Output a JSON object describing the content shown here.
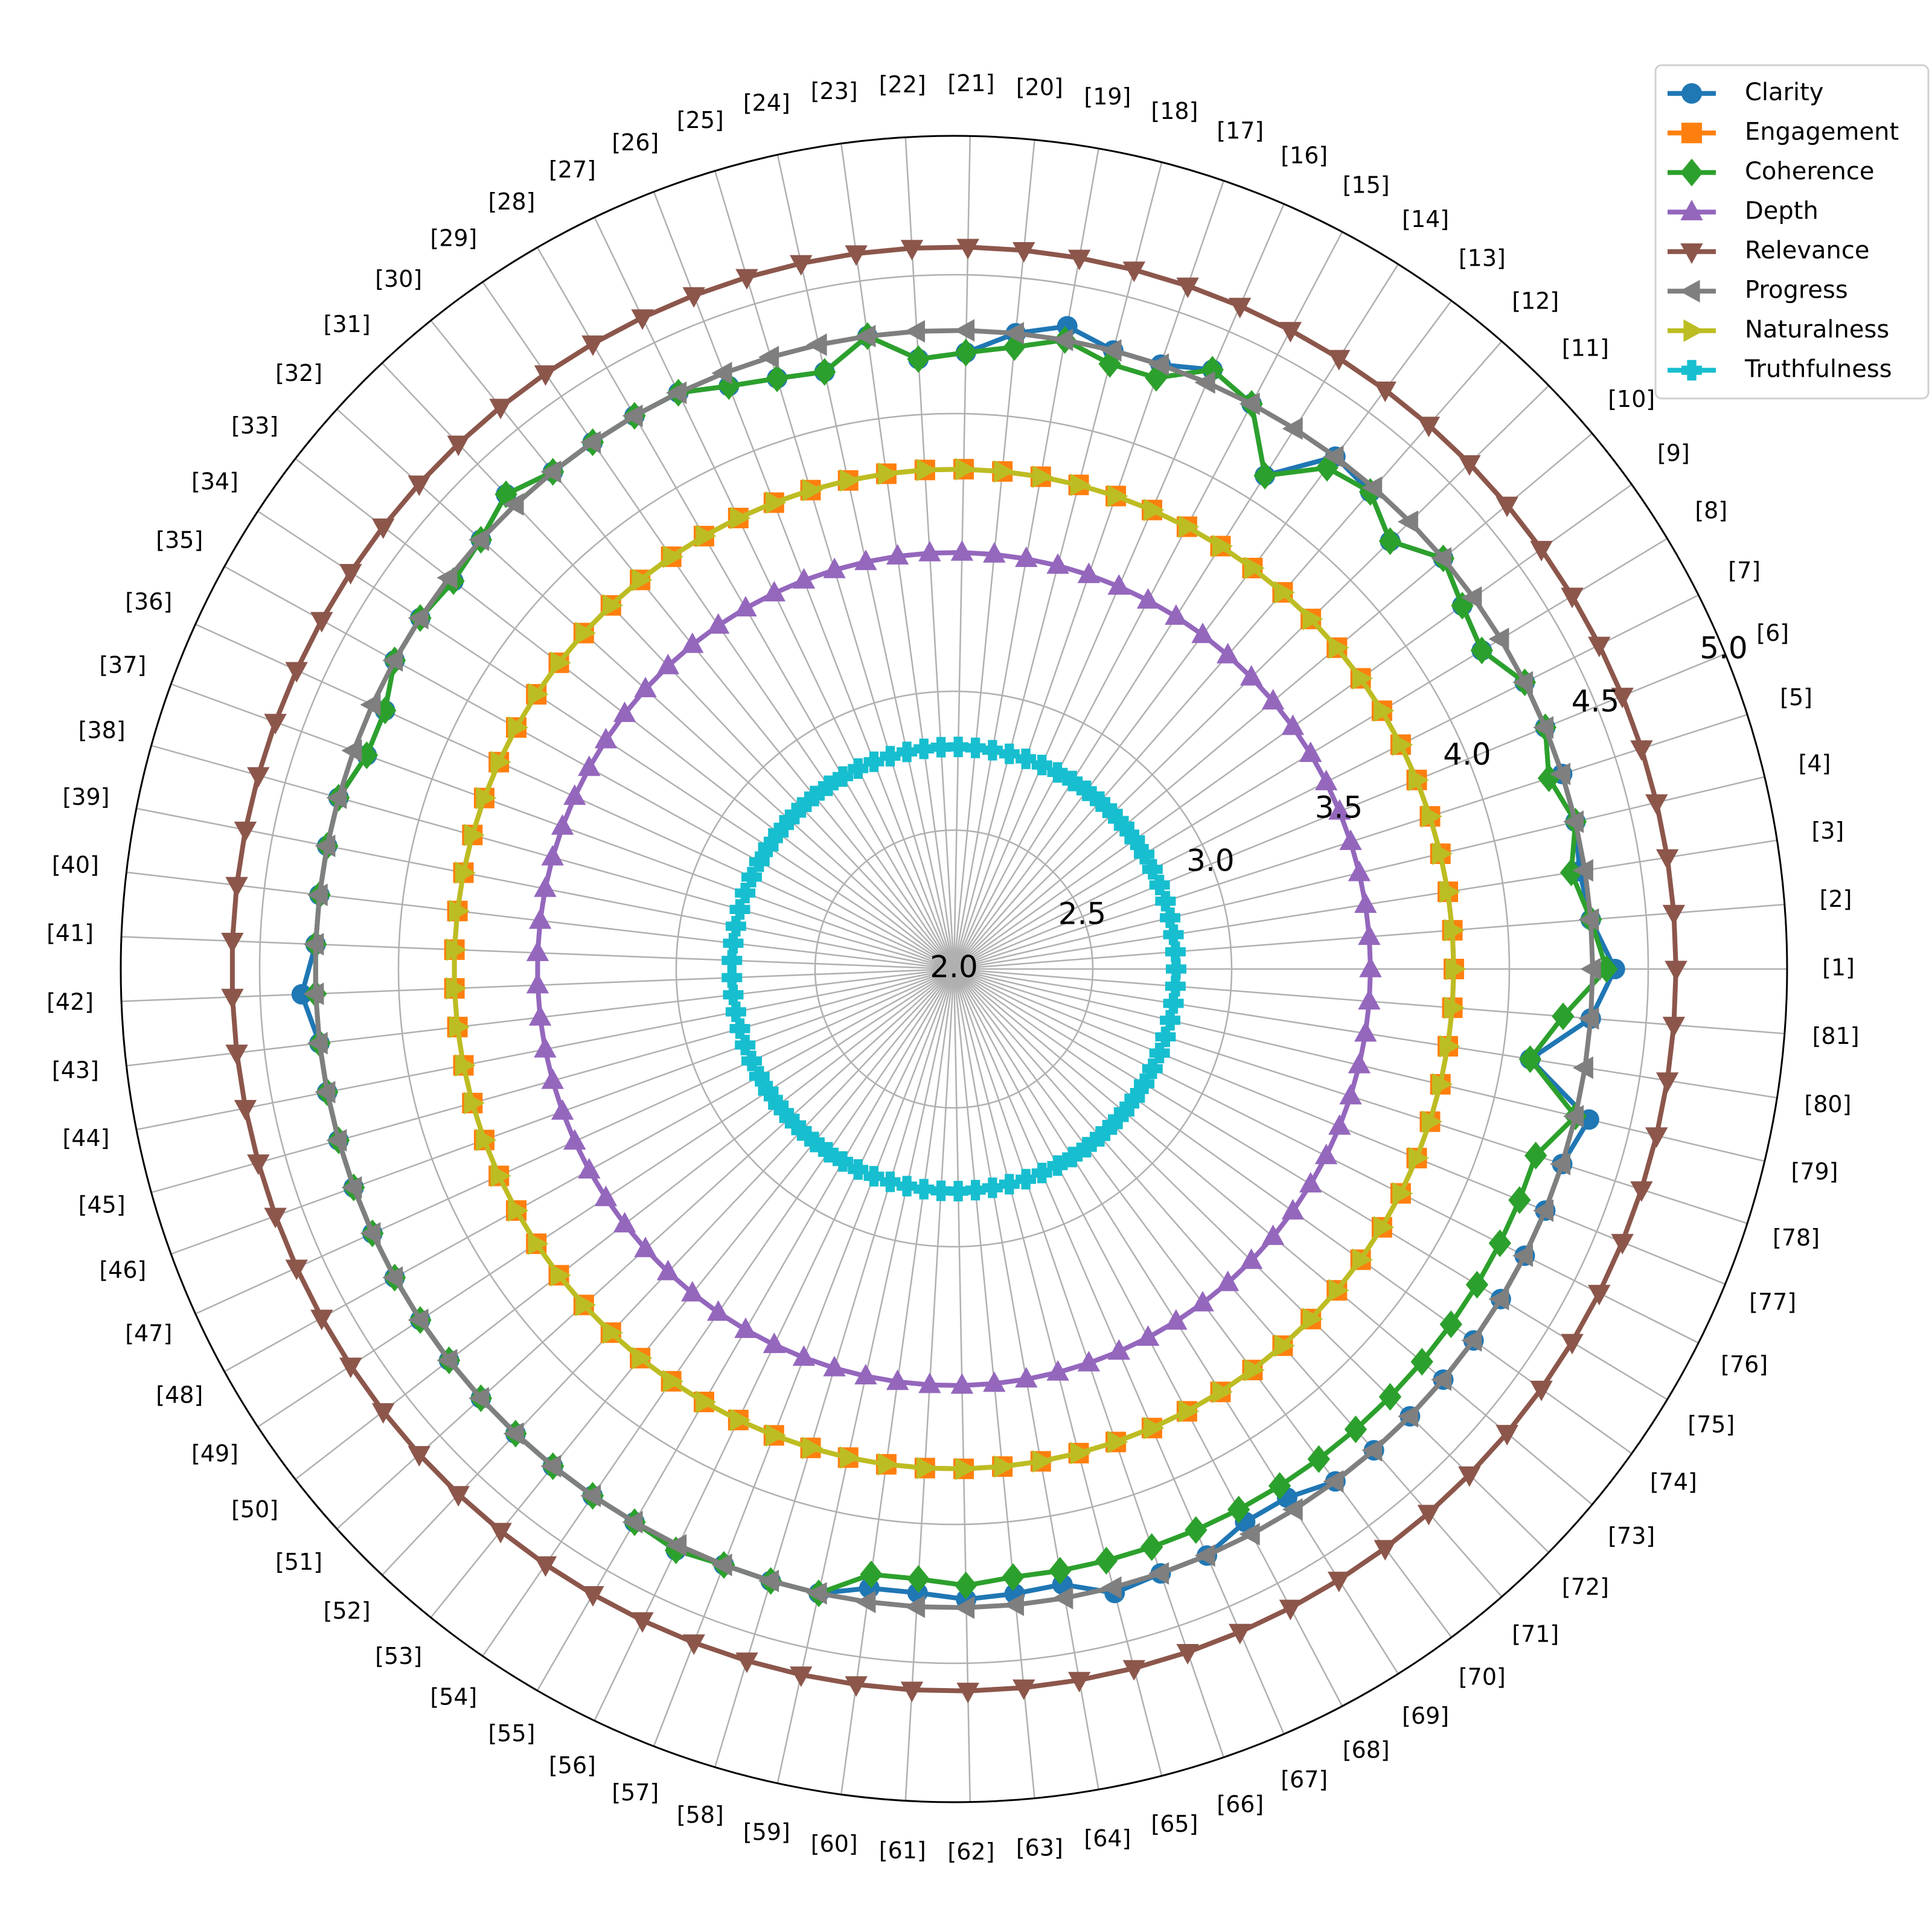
{
  "chart_data": {
    "type": "radar",
    "title": "",
    "categories": [
      "[1]",
      "[2]",
      "[3]",
      "[4]",
      "[5]",
      "[6]",
      "[7]",
      "[8]",
      "[9]",
      "[10]",
      "[11]",
      "[12]",
      "[13]",
      "[14]",
      "[15]",
      "[16]",
      "[17]",
      "[18]",
      "[19]",
      "[20]",
      "[21]",
      "[22]",
      "[23]",
      "[24]",
      "[25]",
      "[26]",
      "[27]",
      "[28]",
      "[29]",
      "[30]",
      "[31]",
      "[32]",
      "[33]",
      "[34]",
      "[35]",
      "[36]",
      "[37]",
      "[38]",
      "[39]",
      "[40]",
      "[41]",
      "[42]",
      "[43]",
      "[44]",
      "[45]",
      "[46]",
      "[47]",
      "[48]",
      "[49]",
      "[50]",
      "[51]",
      "[52]",
      "[53]",
      "[54]",
      "[55]",
      "[56]",
      "[57]",
      "[58]",
      "[59]",
      "[60]",
      "[61]",
      "[62]",
      "[63]",
      "[64]",
      "[65]",
      "[66]",
      "[67]",
      "[68]",
      "[69]",
      "[70]",
      "[71]",
      "[72]",
      "[73]",
      "[74]",
      "[75]",
      "[76]",
      "[77]",
      "[78]",
      "[79]",
      "[80]",
      "[81]"
    ],
    "rlim": [
      2.0,
      5.0
    ],
    "rticks": [
      "2.0",
      "2.5",
      "3.0",
      "3.5",
      "4.0",
      "4.5",
      "5.0"
    ],
    "grid": true,
    "legend_position": "top-right",
    "series": [
      {
        "name": "Clarity",
        "color": "#1f77b4",
        "marker": "circle",
        "values": [
          4.38,
          4.3,
          4.28,
          4.3,
          4.3,
          4.3,
          4.3,
          4.22,
          4.25,
          4.3,
          4.2,
          4.28,
          4.3,
          4.1,
          4.3,
          4.35,
          4.3,
          4.3,
          4.35,
          4.3,
          4.22,
          4.2,
          4.3,
          4.2,
          4.22,
          4.25,
          4.3,
          4.3,
          4.3,
          4.3,
          4.35,
          4.3,
          4.28,
          4.3,
          4.3,
          4.25,
          4.25,
          4.3,
          4.3,
          4.3,
          4.3,
          4.35,
          4.3,
          4.3,
          4.3,
          4.3,
          4.3,
          4.3,
          4.3,
          4.3,
          4.3,
          4.3,
          4.3,
          4.3,
          4.3,
          4.32,
          4.3,
          4.3,
          4.3,
          4.25,
          4.25,
          4.27,
          4.26,
          4.25,
          4.32,
          4.3,
          4.3,
          4.25,
          4.25,
          4.3,
          4.3,
          4.3,
          4.3,
          4.3,
          4.3,
          4.3,
          4.3,
          4.3,
          4.35,
          4.1,
          4.3
        ]
      },
      {
        "name": "Engagement",
        "color": "#ff7f0e",
        "marker": "square",
        "values": [
          3.8,
          3.8,
          3.8,
          3.8,
          3.8,
          3.8,
          3.8,
          3.8,
          3.8,
          3.8,
          3.8,
          3.8,
          3.8,
          3.8,
          3.8,
          3.8,
          3.8,
          3.8,
          3.8,
          3.8,
          3.8,
          3.8,
          3.8,
          3.8,
          3.8,
          3.8,
          3.8,
          3.8,
          3.8,
          3.8,
          3.8,
          3.8,
          3.8,
          3.8,
          3.8,
          3.8,
          3.8,
          3.8,
          3.8,
          3.8,
          3.8,
          3.8,
          3.8,
          3.8,
          3.8,
          3.8,
          3.8,
          3.8,
          3.8,
          3.8,
          3.8,
          3.8,
          3.8,
          3.8,
          3.8,
          3.8,
          3.8,
          3.8,
          3.8,
          3.8,
          3.8,
          3.8,
          3.8,
          3.8,
          3.8,
          3.8,
          3.8,
          3.8,
          3.8,
          3.8,
          3.8,
          3.8,
          3.8,
          3.8,
          3.8,
          3.8,
          3.8,
          3.8,
          3.8,
          3.8,
          3.8
        ]
      },
      {
        "name": "Coherence",
        "color": "#2ca02c",
        "marker": "diamond",
        "values": [
          4.35,
          4.3,
          4.25,
          4.3,
          4.25,
          4.3,
          4.3,
          4.22,
          4.25,
          4.3,
          4.2,
          4.28,
          4.25,
          4.1,
          4.3,
          4.35,
          4.25,
          4.25,
          4.3,
          4.25,
          4.22,
          4.2,
          4.3,
          4.2,
          4.22,
          4.25,
          4.3,
          4.3,
          4.3,
          4.3,
          4.35,
          4.3,
          4.28,
          4.3,
          4.3,
          4.25,
          4.25,
          4.3,
          4.3,
          4.3,
          4.3,
          4.3,
          4.3,
          4.3,
          4.3,
          4.3,
          4.3,
          4.3,
          4.3,
          4.3,
          4.3,
          4.3,
          4.3,
          4.3,
          4.3,
          4.32,
          4.3,
          4.3,
          4.3,
          4.2,
          4.2,
          4.22,
          4.2,
          4.2,
          4.2,
          4.2,
          4.2,
          4.2,
          4.2,
          4.2,
          4.2,
          4.2,
          4.2,
          4.2,
          4.2,
          4.2,
          4.2,
          4.2,
          4.3,
          4.1,
          4.2
        ]
      },
      {
        "name": "Depth",
        "color": "#9467bd",
        "marker": "triangle-up",
        "values": [
          3.5,
          3.5,
          3.5,
          3.5,
          3.5,
          3.5,
          3.5,
          3.5,
          3.5,
          3.5,
          3.5,
          3.5,
          3.5,
          3.5,
          3.5,
          3.5,
          3.5,
          3.5,
          3.5,
          3.5,
          3.5,
          3.5,
          3.5,
          3.5,
          3.5,
          3.5,
          3.5,
          3.5,
          3.5,
          3.5,
          3.5,
          3.5,
          3.5,
          3.5,
          3.5,
          3.5,
          3.5,
          3.5,
          3.5,
          3.5,
          3.5,
          3.5,
          3.5,
          3.5,
          3.5,
          3.5,
          3.5,
          3.5,
          3.5,
          3.5,
          3.5,
          3.5,
          3.5,
          3.5,
          3.5,
          3.5,
          3.5,
          3.5,
          3.5,
          3.5,
          3.5,
          3.5,
          3.5,
          3.5,
          3.5,
          3.5,
          3.5,
          3.5,
          3.5,
          3.5,
          3.5,
          3.5,
          3.5,
          3.5,
          3.5,
          3.5,
          3.5,
          3.5,
          3.5,
          3.5,
          3.5
        ]
      },
      {
        "name": "Relevance",
        "color": "#8c564b",
        "marker": "triangle-down",
        "values": [
          4.6,
          4.6,
          4.6,
          4.6,
          4.6,
          4.6,
          4.6,
          4.6,
          4.6,
          4.6,
          4.6,
          4.6,
          4.6,
          4.6,
          4.6,
          4.6,
          4.6,
          4.6,
          4.6,
          4.6,
          4.6,
          4.6,
          4.6,
          4.6,
          4.6,
          4.6,
          4.6,
          4.6,
          4.6,
          4.6,
          4.6,
          4.6,
          4.6,
          4.6,
          4.6,
          4.6,
          4.6,
          4.6,
          4.6,
          4.6,
          4.6,
          4.6,
          4.6,
          4.6,
          4.6,
          4.6,
          4.6,
          4.6,
          4.6,
          4.6,
          4.6,
          4.6,
          4.6,
          4.6,
          4.6,
          4.6,
          4.6,
          4.6,
          4.6,
          4.6,
          4.6,
          4.6,
          4.6,
          4.6,
          4.6,
          4.6,
          4.6,
          4.6,
          4.6,
          4.6,
          4.6,
          4.6,
          4.6,
          4.6,
          4.6,
          4.6,
          4.6,
          4.6,
          4.6,
          4.6,
          4.6
        ]
      },
      {
        "name": "Progress",
        "color": "#7f7f7f",
        "marker": "triangle-left",
        "values": [
          4.3,
          4.3,
          4.3,
          4.3,
          4.3,
          4.3,
          4.3,
          4.3,
          4.3,
          4.3,
          4.3,
          4.3,
          4.3,
          4.3,
          4.3,
          4.3,
          4.3,
          4.3,
          4.3,
          4.3,
          4.3,
          4.3,
          4.3,
          4.3,
          4.3,
          4.3,
          4.3,
          4.3,
          4.3,
          4.3,
          4.3,
          4.3,
          4.3,
          4.3,
          4.3,
          4.3,
          4.3,
          4.3,
          4.3,
          4.3,
          4.3,
          4.3,
          4.3,
          4.3,
          4.3,
          4.3,
          4.3,
          4.3,
          4.3,
          4.3,
          4.3,
          4.3,
          4.3,
          4.3,
          4.3,
          4.3,
          4.3,
          4.3,
          4.3,
          4.3,
          4.3,
          4.3,
          4.3,
          4.3,
          4.3,
          4.3,
          4.3,
          4.3,
          4.3,
          4.3,
          4.3,
          4.3,
          4.3,
          4.3,
          4.3,
          4.3,
          4.3,
          4.3,
          4.3,
          4.3,
          4.3
        ]
      },
      {
        "name": "Naturalness",
        "color": "#bcbd22",
        "marker": "triangle-right",
        "values": [
          3.8,
          3.8,
          3.8,
          3.8,
          3.8,
          3.8,
          3.8,
          3.8,
          3.8,
          3.8,
          3.8,
          3.8,
          3.8,
          3.8,
          3.8,
          3.8,
          3.8,
          3.8,
          3.8,
          3.8,
          3.8,
          3.8,
          3.8,
          3.8,
          3.8,
          3.8,
          3.8,
          3.8,
          3.8,
          3.8,
          3.8,
          3.8,
          3.8,
          3.8,
          3.8,
          3.8,
          3.8,
          3.8,
          3.8,
          3.8,
          3.8,
          3.8,
          3.8,
          3.8,
          3.8,
          3.8,
          3.8,
          3.8,
          3.8,
          3.8,
          3.8,
          3.8,
          3.8,
          3.8,
          3.8,
          3.8,
          3.8,
          3.8,
          3.8,
          3.8,
          3.8,
          3.8,
          3.8,
          3.8,
          3.8,
          3.8,
          3.8,
          3.8,
          3.8,
          3.8,
          3.8,
          3.8,
          3.8,
          3.8,
          3.8,
          3.8,
          3.8,
          3.8,
          3.8,
          3.8,
          3.8
        ]
      },
      {
        "name": "Truthfulness",
        "color": "#17becf",
        "marker": "plus",
        "values": [
          2.8,
          2.8,
          2.8,
          2.8,
          2.8,
          2.8,
          2.8,
          2.8,
          2.8,
          2.8,
          2.8,
          2.8,
          2.8,
          2.8,
          2.8,
          2.8,
          2.8,
          2.8,
          2.8,
          2.8,
          2.8,
          2.8,
          2.8,
          2.8,
          2.8,
          2.8,
          2.8,
          2.8,
          2.8,
          2.8,
          2.8,
          2.8,
          2.8,
          2.8,
          2.8,
          2.8,
          2.8,
          2.8,
          2.8,
          2.8,
          2.8,
          2.8,
          2.8,
          2.8,
          2.8,
          2.8,
          2.8,
          2.8,
          2.8,
          2.8,
          2.8,
          2.8,
          2.8,
          2.8,
          2.8,
          2.8,
          2.8,
          2.8,
          2.8,
          2.8,
          2.8,
          2.8,
          2.8,
          2.8,
          2.8,
          2.8,
          2.8,
          2.8,
          2.8,
          2.8,
          2.8,
          2.8,
          2.8,
          2.8,
          2.8,
          2.8,
          2.8,
          2.8,
          2.8,
          2.8,
          2.8
        ]
      }
    ]
  }
}
